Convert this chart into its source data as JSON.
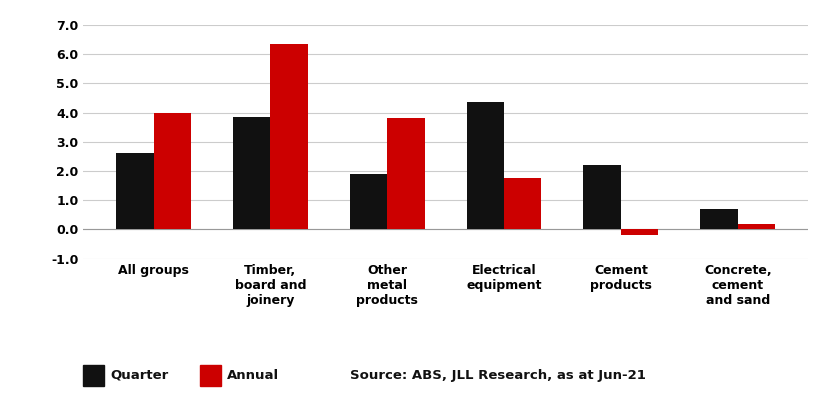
{
  "categories": [
    "All groups",
    "Timber,\nboard and\njoinery",
    "Other\nmetal\nproducts",
    "Electrical\nequipment",
    "Cement\nproducts",
    "Concrete,\ncement\nand sand"
  ],
  "quarter_values": [
    2.6,
    3.85,
    1.9,
    4.35,
    2.2,
    0.7
  ],
  "annual_values": [
    4.0,
    6.35,
    3.8,
    1.75,
    -0.2,
    0.2
  ],
  "quarter_color": "#111111",
  "annual_color": "#cc0000",
  "ylim": [
    -1.0,
    7.0
  ],
  "yticks": [
    -1.0,
    0.0,
    1.0,
    2.0,
    3.0,
    4.0,
    5.0,
    6.0,
    7.0
  ],
  "ytick_labels": [
    "-1.0",
    "0.0",
    "1.0",
    "2.0",
    "3.0",
    "4.0",
    "5.0",
    "6.0",
    "7.0"
  ],
  "legend_quarter": "Quarter",
  "legend_annual": "Annual",
  "source_text": "Source: ABS, JLL Research, as at Jun-21",
  "background_color": "#ffffff",
  "bar_width": 0.32,
  "grid_color": "#cccccc"
}
